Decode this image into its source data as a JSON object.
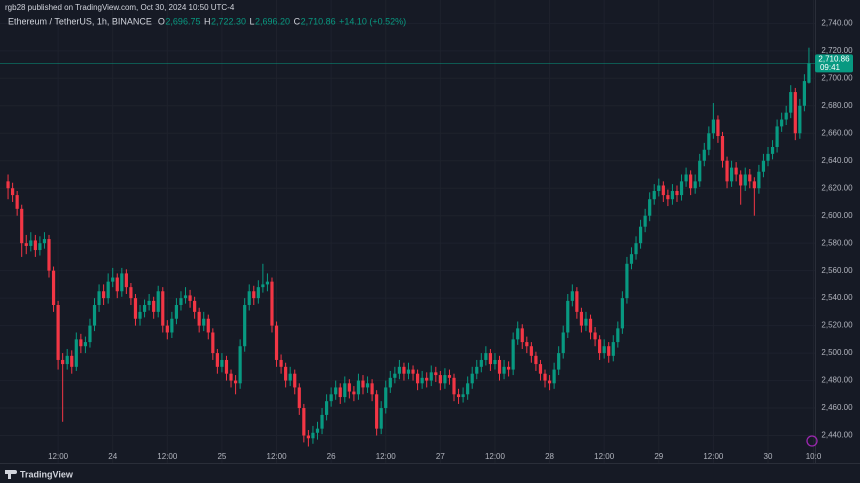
{
  "header": {
    "published": "rgb28 published on TradingView.com, Oct 30, 2024 10:50 UTC-4",
    "brand": "TradingView"
  },
  "chart_data": {
    "type": "candlestick",
    "symbol": "Ethereum / TetherUS, 1h, BINANCE",
    "legend": [
      {
        "label": "O",
        "value": "2,696.75"
      },
      {
        "label": "H",
        "value": "2,722.30"
      },
      {
        "label": "L",
        "value": "2,696.20"
      },
      {
        "label": "C",
        "value": "2,710.86"
      }
    ],
    "change": "+14.10 (+0.52%)",
    "last_price_label": "2,710.86",
    "countdown": "09:41",
    "up_color": "#089981",
    "down_color": "#f23645",
    "grid": true,
    "open": [
      2625,
      2620,
      2615,
      2605,
      2580,
      2578,
      2582,
      2575,
      2580,
      2583,
      2560,
      2535,
      2495,
      2492,
      2498,
      2490,
      2510,
      2505,
      2508,
      2520,
      2535,
      2545,
      2540,
      2552,
      2555,
      2545,
      2558,
      2548,
      2540,
      2525,
      2530,
      2535,
      2538,
      2530,
      2545,
      2520,
      2515,
      2525,
      2535,
      2540,
      2542,
      2538,
      2530,
      2520,
      2525,
      2515,
      2500,
      2490,
      2495,
      2485,
      2480,
      2478,
      2505,
      2535,
      2545,
      2540,
      2548,
      2550,
      2552,
      2520,
      2495,
      2490,
      2480,
      2485,
      2475,
      2460,
      2440,
      2438,
      2442,
      2445,
      2455,
      2465,
      2470,
      2475,
      2468,
      2478,
      2472,
      2470,
      2480,
      2475,
      2478,
      2470,
      2445,
      2460,
      2475,
      2482,
      2485,
      2490,
      2485,
      2488,
      2485,
      2478,
      2482,
      2480,
      2486,
      2484,
      2478,
      2484,
      2482,
      2470,
      2468,
      2470,
      2478,
      2485,
      2490,
      2495,
      2500,
      2492,
      2495,
      2485,
      2490,
      2488,
      2510,
      2518,
      2508,
      2505,
      2498,
      2492,
      2485,
      2480,
      2478,
      2488,
      2500,
      2515,
      2538,
      2545,
      2530,
      2520,
      2525,
      2515,
      2510,
      2500,
      2505,
      2498,
      2508,
      2518,
      2540,
      2565,
      2572,
      2580,
      2592,
      2600,
      2612,
      2618,
      2622,
      2615,
      2612,
      2618,
      2615,
      2625,
      2630,
      2620,
      2625,
      2640,
      2648,
      2660,
      2670,
      2658,
      2640,
      2625,
      2635,
      2630,
      2622,
      2630,
      2625,
      2620,
      2632,
      2640,
      2645,
      2650,
      2665,
      2670,
      2675,
      2690,
      2660,
      2680,
      2696.75
    ],
    "high": [
      2630,
      2624,
      2618,
      2608,
      2586,
      2588,
      2586,
      2585,
      2588,
      2586,
      2563,
      2538,
      2500,
      2503,
      2502,
      2515,
      2514,
      2512,
      2525,
      2540,
      2550,
      2550,
      2558,
      2562,
      2558,
      2562,
      2561,
      2551,
      2543,
      2535,
      2539,
      2543,
      2541,
      2549,
      2548,
      2524,
      2530,
      2540,
      2545,
      2548,
      2546,
      2541,
      2533,
      2530,
      2528,
      2518,
      2503,
      2500,
      2498,
      2488,
      2484,
      2510,
      2540,
      2550,
      2549,
      2553,
      2565,
      2558,
      2555,
      2523,
      2499,
      2493,
      2490,
      2488,
      2478,
      2463,
      2444,
      2447,
      2450,
      2460,
      2470,
      2475,
      2480,
      2478,
      2483,
      2481,
      2476,
      2485,
      2484,
      2483,
      2481,
      2473,
      2465,
      2480,
      2487,
      2490,
      2495,
      2493,
      2493,
      2491,
      2488,
      2487,
      2486,
      2491,
      2490,
      2487,
      2489,
      2488,
      2485,
      2474,
      2475,
      2483,
      2490,
      2495,
      2500,
      2505,
      2503,
      2500,
      2498,
      2495,
      2494,
      2515,
      2523,
      2521,
      2512,
      2508,
      2501,
      2495,
      2488,
      2484,
      2493,
      2505,
      2520,
      2543,
      2550,
      2548,
      2533,
      2530,
      2528,
      2519,
      2513,
      2510,
      2508,
      2513,
      2523,
      2545,
      2570,
      2577,
      2585,
      2597,
      2605,
      2617,
      2623,
      2627,
      2625,
      2619,
      2623,
      2622,
      2630,
      2635,
      2633,
      2630,
      2645,
      2653,
      2665,
      2682,
      2673,
      2661,
      2643,
      2640,
      2639,
      2633,
      2635,
      2634,
      2628,
      2637,
      2645,
      2650,
      2655,
      2670,
      2675,
      2680,
      2695,
      2693,
      2685,
      2703,
      2722.3
    ],
    "low": [
      2612,
      2610,
      2600,
      2570,
      2572,
      2574,
      2570,
      2571,
      2576,
      2555,
      2530,
      2488,
      2450,
      2488,
      2485,
      2487,
      2500,
      2500,
      2504,
      2516,
      2530,
      2535,
      2536,
      2548,
      2540,
      2541,
      2543,
      2535,
      2520,
      2520,
      2526,
      2531,
      2525,
      2526,
      2515,
      2510,
      2511,
      2521,
      2531,
      2536,
      2533,
      2525,
      2515,
      2516,
      2510,
      2495,
      2485,
      2486,
      2480,
      2475,
      2470,
      2474,
      2501,
      2531,
      2535,
      2536,
      2544,
      2545,
      2515,
      2490,
      2485,
      2475,
      2476,
      2470,
      2455,
      2435,
      2432,
      2434,
      2437,
      2441,
      2451,
      2461,
      2466,
      2463,
      2464,
      2467,
      2465,
      2466,
      2470,
      2471,
      2465,
      2440,
      2441,
      2456,
      2471,
      2478,
      2481,
      2480,
      2481,
      2480,
      2473,
      2474,
      2475,
      2476,
      2479,
      2473,
      2474,
      2477,
      2465,
      2463,
      2464,
      2466,
      2474,
      2481,
      2486,
      2491,
      2487,
      2488,
      2480,
      2481,
      2483,
      2484,
      2506,
      2503,
      2500,
      2493,
      2487,
      2480,
      2475,
      2473,
      2474,
      2484,
      2496,
      2511,
      2534,
      2525,
      2515,
      2516,
      2510,
      2505,
      2495,
      2496,
      2493,
      2494,
      2504,
      2514,
      2536,
      2561,
      2568,
      2576,
      2588,
      2596,
      2608,
      2614,
      2610,
      2607,
      2608,
      2610,
      2611,
      2621,
      2615,
      2616,
      2621,
      2636,
      2644,
      2656,
      2653,
      2635,
      2620,
      2621,
      2625,
      2608,
      2618,
      2620,
      2600,
      2616,
      2628,
      2636,
      2641,
      2646,
      2661,
      2666,
      2671,
      2655,
      2656,
      2676,
      2696.2
    ],
    "close": [
      2620,
      2615,
      2605,
      2580,
      2578,
      2582,
      2575,
      2580,
      2583,
      2560,
      2535,
      2495,
      2492,
      2498,
      2490,
      2510,
      2505,
      2508,
      2520,
      2535,
      2545,
      2540,
      2552,
      2555,
      2545,
      2558,
      2548,
      2540,
      2525,
      2530,
      2535,
      2538,
      2530,
      2545,
      2520,
      2515,
      2525,
      2535,
      2540,
      2542,
      2538,
      2530,
      2520,
      2525,
      2515,
      2500,
      2490,
      2495,
      2485,
      2480,
      2478,
      2505,
      2535,
      2545,
      2540,
      2548,
      2550,
      2552,
      2520,
      2495,
      2490,
      2480,
      2485,
      2475,
      2460,
      2440,
      2438,
      2442,
      2445,
      2455,
      2465,
      2470,
      2475,
      2468,
      2478,
      2472,
      2470,
      2480,
      2475,
      2478,
      2470,
      2445,
      2460,
      2475,
      2482,
      2485,
      2490,
      2485,
      2488,
      2485,
      2478,
      2482,
      2480,
      2486,
      2484,
      2478,
      2484,
      2482,
      2470,
      2468,
      2470,
      2478,
      2485,
      2490,
      2495,
      2500,
      2492,
      2495,
      2485,
      2490,
      2488,
      2510,
      2518,
      2508,
      2505,
      2498,
      2492,
      2485,
      2480,
      2478,
      2488,
      2500,
      2515,
      2538,
      2545,
      2530,
      2520,
      2525,
      2515,
      2510,
      2500,
      2505,
      2498,
      2508,
      2518,
      2540,
      2565,
      2572,
      2580,
      2592,
      2600,
      2612,
      2618,
      2622,
      2615,
      2612,
      2618,
      2615,
      2625,
      2630,
      2620,
      2625,
      2640,
      2648,
      2660,
      2670,
      2658,
      2640,
      2625,
      2635,
      2630,
      2622,
      2630,
      2625,
      2620,
      2632,
      2640,
      2645,
      2650,
      2665,
      2670,
      2675,
      2690,
      2660,
      2680,
      2698,
      2710.86
    ],
    "xlim": [
      -1,
      177
    ],
    "xticks": [
      {
        "value": 11,
        "label": "12:00"
      },
      {
        "value": 23,
        "label": "24"
      },
      {
        "value": 35,
        "label": "12:00"
      },
      {
        "value": 47,
        "label": "25"
      },
      {
        "value": 59,
        "label": "12:00"
      },
      {
        "value": 71,
        "label": "26"
      },
      {
        "value": 83,
        "label": "12:00"
      },
      {
        "value": 95,
        "label": "27"
      },
      {
        "value": 107,
        "label": "12:00"
      },
      {
        "value": 119,
        "label": "28"
      },
      {
        "value": 131,
        "label": "12:00"
      },
      {
        "value": 143,
        "label": "29"
      },
      {
        "value": 155,
        "label": "12:00"
      },
      {
        "value": 167,
        "label": "30"
      },
      {
        "value": 177,
        "label": "10:0"
      }
    ],
    "ylim": [
      2420,
      2757
    ],
    "yticks": [
      {
        "value": 2440,
        "label": "2,440.00"
      },
      {
        "value": 2460,
        "label": "2,460.00"
      },
      {
        "value": 2480,
        "label": "2,480.00"
      },
      {
        "value": 2500,
        "label": "2,500.00"
      },
      {
        "value": 2520,
        "label": "2,520.00"
      },
      {
        "value": 2540,
        "label": "2,540.00"
      },
      {
        "value": 2560,
        "label": "2,560.00"
      },
      {
        "value": 2580,
        "label": "2,580.00"
      },
      {
        "value": 2600,
        "label": "2,600.00"
      },
      {
        "value": 2620,
        "label": "2,620.00"
      },
      {
        "value": 2640,
        "label": "2,640.00"
      },
      {
        "value": 2660,
        "label": "2,660.00"
      },
      {
        "value": 2680,
        "label": "2,680.00"
      },
      {
        "value": 2700,
        "label": "2,700.00"
      },
      {
        "value": 2720,
        "label": "2,720.00"
      },
      {
        "value": 2740,
        "label": "2,740.00"
      }
    ]
  }
}
